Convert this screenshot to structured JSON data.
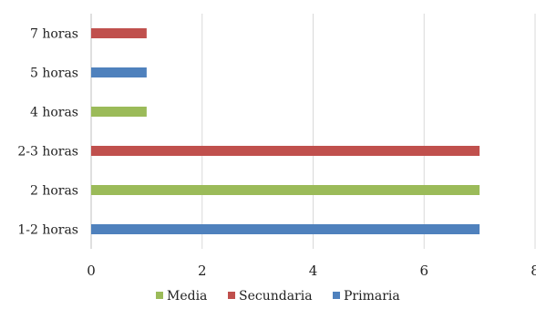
{
  "chart_data": {
    "type": "bar",
    "orientation": "horizontal",
    "categories": [
      "1-2 horas",
      "2 horas",
      "2-3 horas",
      "4 horas",
      "5 horas",
      "7 horas"
    ],
    "x_ticks": [
      "0",
      "2",
      "4",
      "6",
      "8"
    ],
    "xlim": [
      0,
      8
    ],
    "grid": "vertical",
    "legend": "bottom",
    "series": [
      {
        "name": "Media",
        "color": "#9bbb59",
        "values": [
          0,
          7,
          0,
          1,
          0,
          0
        ]
      },
      {
        "name": "Secundaria",
        "color": "#c0504d",
        "values": [
          0,
          0,
          7,
          0,
          0,
          1
        ]
      },
      {
        "name": "Primaria",
        "color": "#4f81bd",
        "values": [
          7,
          0,
          0,
          0,
          1,
          0
        ]
      }
    ]
  }
}
